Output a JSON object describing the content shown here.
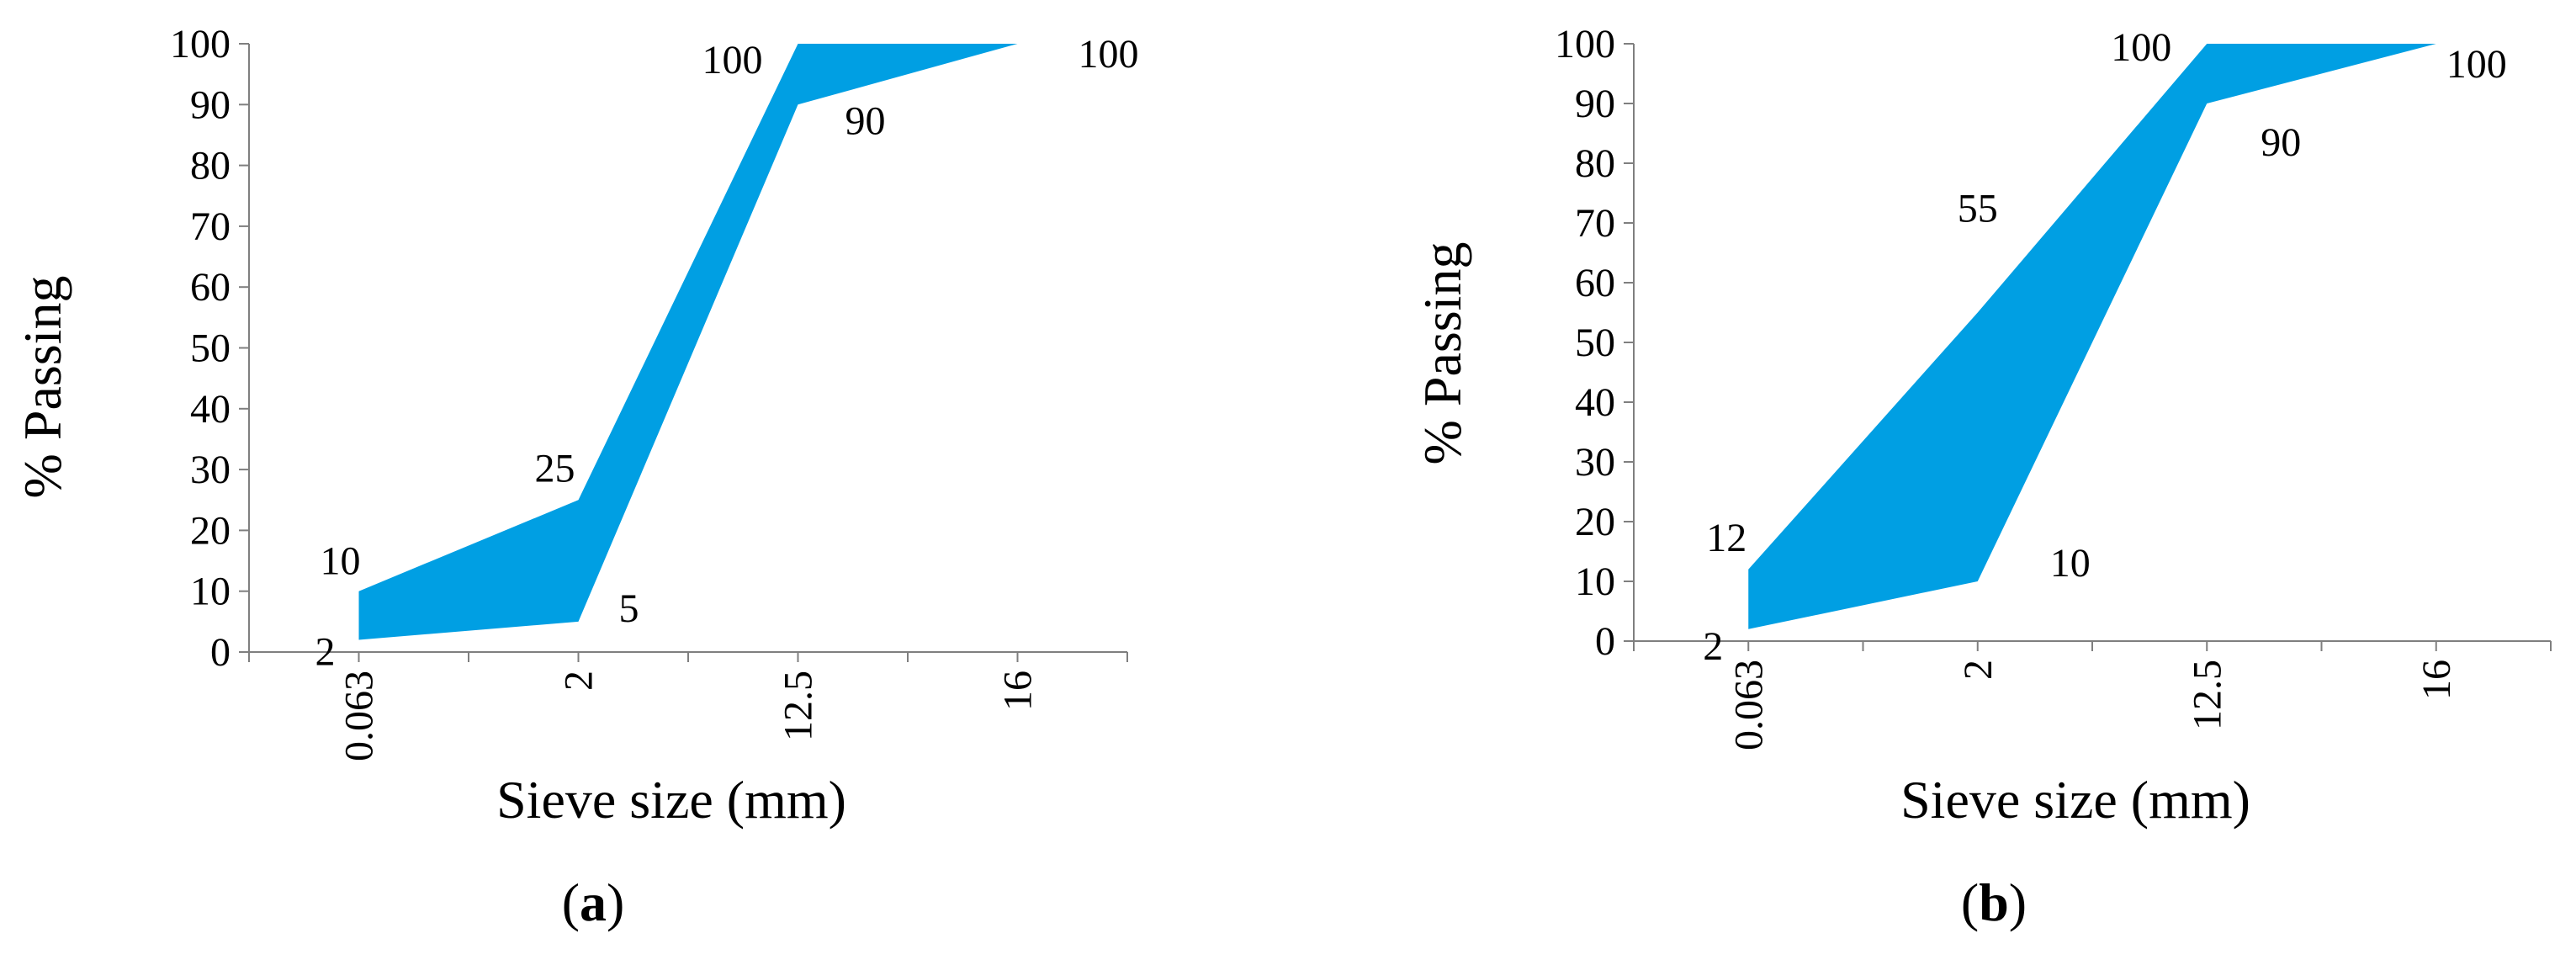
{
  "chart_data": [
    {
      "panel": "(a)",
      "panel_letter": "a",
      "type": "area",
      "color": "#009fe3",
      "xlabel": "Sieve size (mm)",
      "ylabel": "% Passing",
      "categories": [
        "0.063",
        "2",
        "12.5",
        "16"
      ],
      "ylim": [
        0,
        100
      ],
      "yticks": [
        "0",
        "10",
        "20",
        "30",
        "40",
        "50",
        "60",
        "70",
        "80",
        "90",
        "100"
      ],
      "series": [
        {
          "values": [
            10,
            25,
            100,
            100
          ]
        },
        {
          "values": [
            2,
            5,
            90,
            100
          ]
        }
      ],
      "data_labels": {
        "upper": [
          "10",
          "25",
          "100",
          "100"
        ],
        "lower": [
          "2",
          "5",
          "90",
          ""
        ]
      }
    },
    {
      "panel": "(b)",
      "panel_letter": "b",
      "type": "area",
      "color": "#009fe3",
      "xlabel": "Sieve size (mm)",
      "ylabel": "% Passing",
      "categories": [
        "0.063",
        "2",
        "12.5",
        "16"
      ],
      "ylim": [
        0,
        100
      ],
      "yticks": [
        "0",
        "10",
        "20",
        "30",
        "40",
        "50",
        "60",
        "70",
        "80",
        "90",
        "100"
      ],
      "series": [
        {
          "values": [
            12,
            55,
            100,
            100
          ]
        },
        {
          "values": [
            2,
            10,
            90,
            100
          ]
        }
      ],
      "data_labels": {
        "upper": [
          "12",
          "55",
          "100",
          "100"
        ],
        "lower": [
          "2",
          "10",
          "90",
          ""
        ]
      }
    }
  ]
}
